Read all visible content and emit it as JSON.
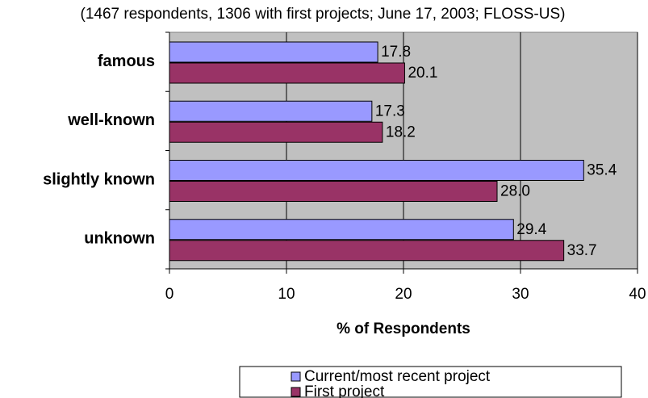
{
  "chart_data": {
    "type": "hbar",
    "title": "(1467 respondents, 1306 with first projects; June 17, 2003; FLOSS-US)",
    "categories": [
      "famous",
      "well-known",
      "slightly known",
      "unknown"
    ],
    "series": [
      {
        "name": "Current/most recent project",
        "color": "#9999ff",
        "values": [
          17.8,
          17.3,
          35.4,
          29.4
        ],
        "value_labels": [
          "17.8",
          "17.3",
          "35.4",
          "29.4"
        ]
      },
      {
        "name": "First project",
        "color": "#993366",
        "values": [
          20.1,
          18.2,
          28.0,
          33.7
        ],
        "value_labels": [
          "20.1",
          "18.2",
          "28.0",
          "33.7"
        ]
      }
    ],
    "xlabel": "% of Respondents",
    "xlim": [
      0,
      40
    ],
    "xticks": [
      0,
      10,
      20,
      30,
      40
    ],
    "grid": true
  }
}
